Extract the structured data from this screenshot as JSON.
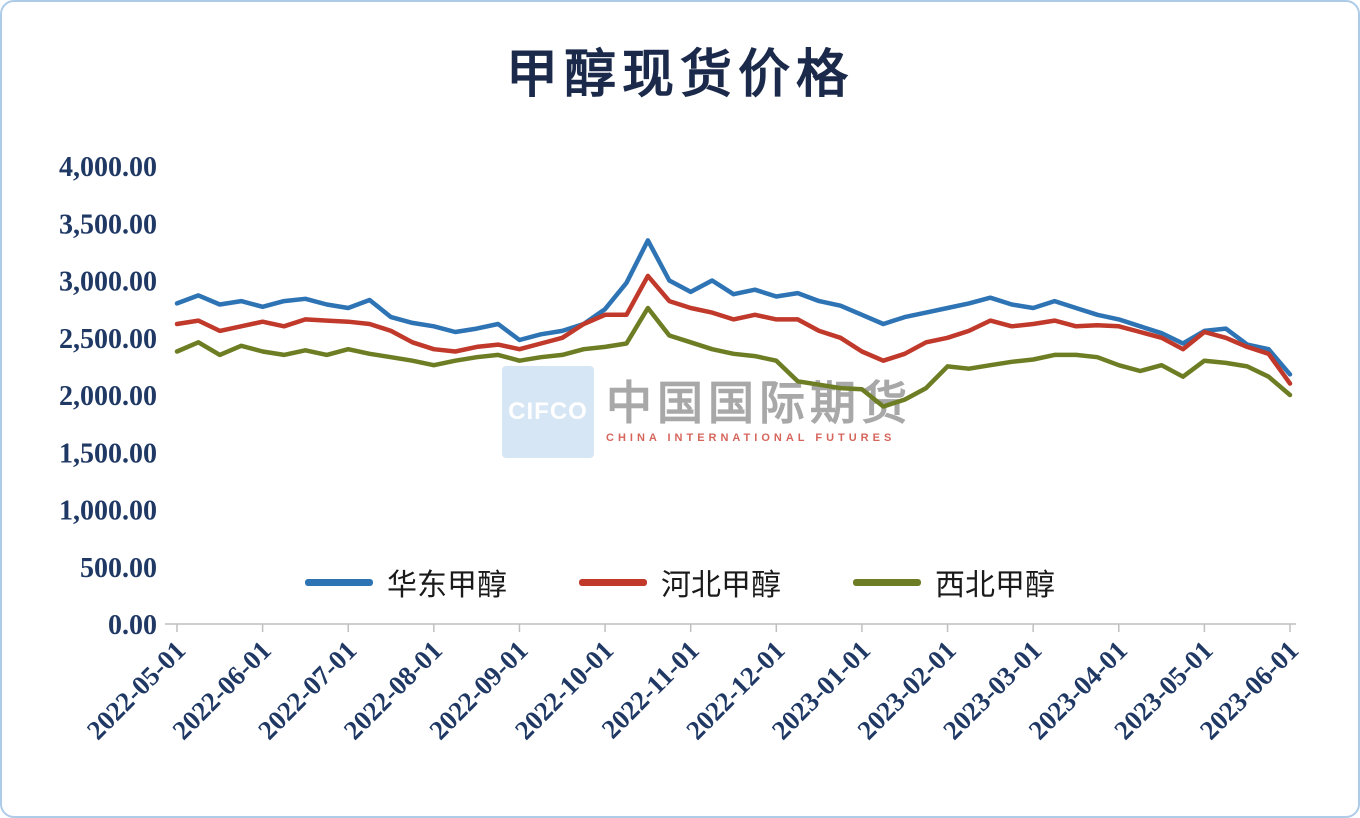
{
  "chart_data": {
    "type": "line",
    "title": "甲醇现货价格",
    "x_tick_labels": [
      "2022-05-01",
      "2022-06-01",
      "2022-07-01",
      "2022-08-01",
      "2022-09-01",
      "2022-10-01",
      "2022-11-01",
      "2022-12-01",
      "2023-01-01",
      "2023-02-01",
      "2023-03-01",
      "2023-04-01",
      "2023-05-01",
      "2023-06-01"
    ],
    "y_ticks": [
      0,
      500,
      1000,
      1500,
      2000,
      2500,
      3000,
      3500,
      4000
    ],
    "y_tick_labels": [
      "0.00",
      "500.00",
      "1,000.00",
      "1,500.00",
      "2,000.00",
      "2,500.00",
      "3,000.00",
      "3,500.00",
      "4,000.00"
    ],
    "ylim": [
      0,
      4000
    ],
    "x_step_months": 0.25,
    "grid": false,
    "legend_position": "inside-bottom-center",
    "axis_color": "#bfbfbf",
    "label_color": "#1f3864",
    "series": [
      {
        "name": "华东甲醇",
        "color": "#2e74b5",
        "values": [
          2800,
          2870,
          2790,
          2820,
          2770,
          2820,
          2840,
          2790,
          2760,
          2830,
          2680,
          2630,
          2600,
          2550,
          2580,
          2620,
          2480,
          2530,
          2560,
          2620,
          2750,
          2980,
          3350,
          3000,
          2900,
          3000,
          2880,
          2920,
          2860,
          2890,
          2820,
          2780,
          2700,
          2620,
          2680,
          2720,
          2760,
          2800,
          2850,
          2790,
          2760,
          2820,
          2760,
          2700,
          2660,
          2600,
          2540,
          2450,
          2560,
          2580,
          2440,
          2400,
          2180
        ]
      },
      {
        "name": "河北甲醇",
        "color": "#c0392b",
        "values": [
          2620,
          2650,
          2560,
          2600,
          2640,
          2600,
          2660,
          2650,
          2640,
          2620,
          2560,
          2460,
          2400,
          2380,
          2420,
          2440,
          2400,
          2450,
          2500,
          2620,
          2700,
          2700,
          3040,
          2820,
          2760,
          2720,
          2660,
          2700,
          2660,
          2660,
          2560,
          2500,
          2380,
          2300,
          2360,
          2460,
          2500,
          2560,
          2650,
          2600,
          2620,
          2650,
          2600,
          2610,
          2600,
          2550,
          2500,
          2400,
          2550,
          2500,
          2420,
          2360,
          2100
        ]
      },
      {
        "name": "西北甲醇",
        "color": "#6d7d24",
        "values": [
          2380,
          2460,
          2350,
          2430,
          2380,
          2350,
          2390,
          2350,
          2400,
          2360,
          2330,
          2300,
          2260,
          2300,
          2330,
          2350,
          2300,
          2330,
          2350,
          2400,
          2420,
          2450,
          2760,
          2520,
          2460,
          2400,
          2360,
          2340,
          2300,
          2120,
          2090,
          2060,
          2050,
          1900,
          1960,
          2060,
          2250,
          2230,
          2260,
          2290,
          2310,
          2350,
          2350,
          2330,
          2260,
          2210,
          2260,
          2160,
          2300,
          2280,
          2250,
          2160,
          2000
        ]
      }
    ]
  },
  "watermark": {
    "logo_text": "CIFCO",
    "text": "中国国际期货",
    "subtext": "CHINA INTERNATIONAL FUTURES"
  }
}
